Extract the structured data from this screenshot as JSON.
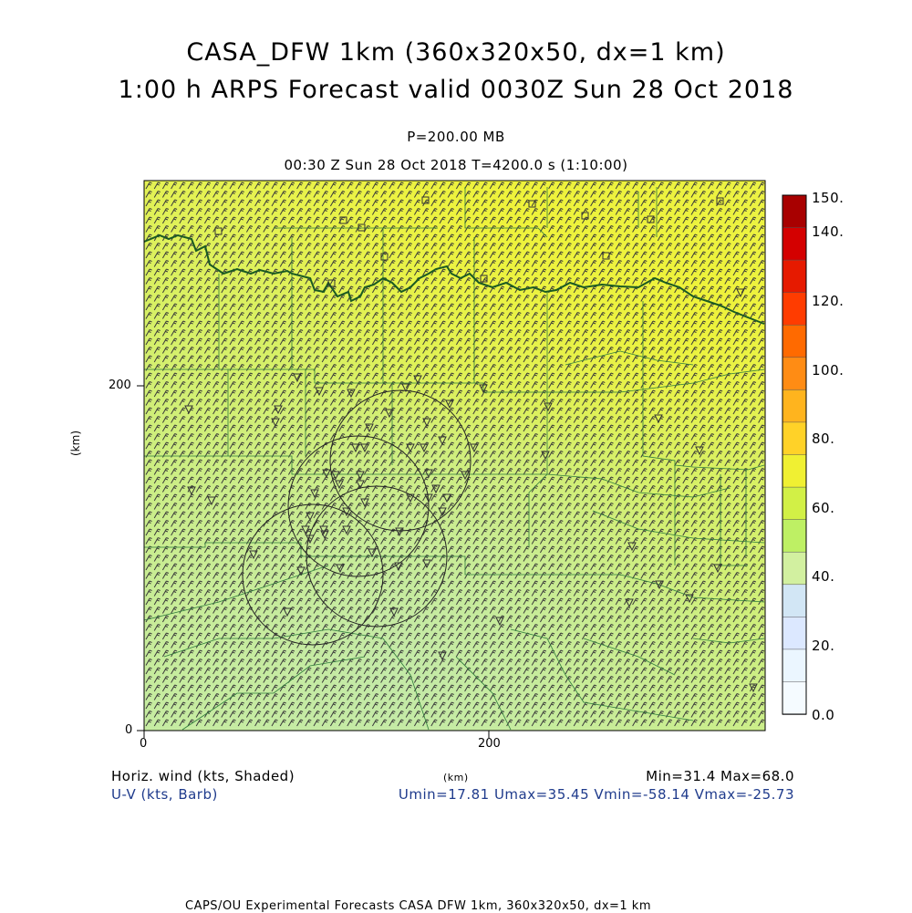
{
  "header": {
    "title_line1": "CASA_DFW 1km (360x320x50, dx=1 km)",
    "title_line2": "1:00 h ARPS Forecast valid 0030Z Sun 28 Oct 2018",
    "pressure": "P=200.00 MB",
    "time": "00:30 Z Sun 28 Oct 2018    T=4200.0 s (1:10:00)"
  },
  "axes": {
    "x_label": "(km)",
    "y_label": "(km)",
    "x_ticks": [
      "0",
      "200"
    ],
    "y_ticks": [
      "0",
      "200"
    ],
    "x_range": [
      0,
      360
    ],
    "y_range": [
      0,
      320
    ]
  },
  "colorbar": {
    "labels": [
      "150.",
      "140.",
      "120.",
      "100.",
      "80.",
      "60.",
      "40.",
      "20.",
      "0.0"
    ],
    "colors": [
      "#a80000",
      "#d40000",
      "#e61a00",
      "#ff3c00",
      "#ff6a00",
      "#ff8c14",
      "#ffb41e",
      "#ffd228",
      "#f0f032",
      "#d2f046",
      "#bef064",
      "#d2f0a0",
      "#d2e6f5",
      "#dce8ff",
      "#ebf6ff",
      "#f5fbff"
    ]
  },
  "footer": {
    "left_line1": "Horiz. wind (kts, Shaded)",
    "left_line2": "U-V (kts, Barb)",
    "center_xlabel": "(km)",
    "minmax": "Min=31.4 Max=68.0",
    "uv_stats": "Umin=17.81 Umax=35.45 Vmin=-58.14 Vmax=-25.73",
    "credit": "CAPS/OU Experimental Forecasts  CASA DFW 1km, 360x320x50, dx=1 km"
  },
  "colors": {
    "field_low": "#c8ec98",
    "field_mid": "#d8f064",
    "field_high": "#eef23c",
    "barb": "#333333",
    "border": "#1a6b2a"
  }
}
